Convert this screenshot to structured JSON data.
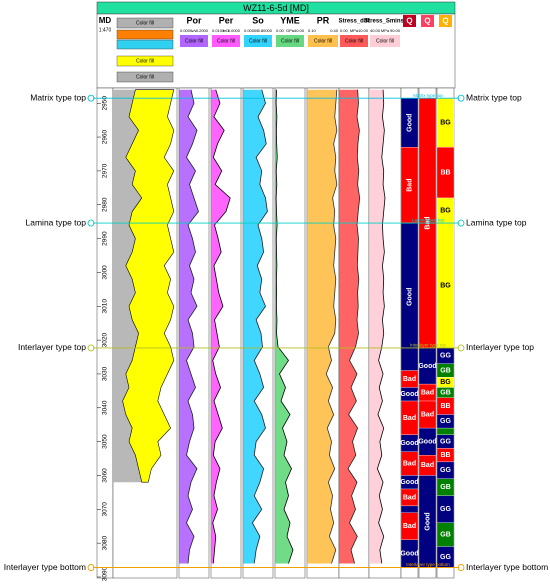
{
  "title": "WZ11-6-5d [MD]",
  "md": {
    "header": "MD",
    "scale": "1:470",
    "ylim": [
      2945.5,
      3090.3
    ],
    "yticks": [
      2950,
      2960,
      2970,
      2980,
      2990,
      3000,
      3010,
      3020,
      3030,
      3040,
      3050,
      3060,
      3070,
      3080,
      3090
    ]
  },
  "lithology": {
    "legend": [
      {
        "label": "Color fill",
        "color": "#b0b0b0"
      },
      {
        "label": "Color fill",
        "color": "#ffff00"
      },
      {
        "label": "Color fill",
        "color": "#b0b0b0"
      }
    ],
    "left": [
      0.35,
      0.3,
      0.25,
      0.4,
      0.3,
      0.2,
      0.35,
      0.3,
      0.45,
      0.3,
      0.25,
      0.35,
      0.3,
      0.2,
      0.3,
      0.35,
      0.25,
      0.3,
      0.4,
      0.35,
      0.3,
      0.2,
      0.25,
      0.15,
      0.2,
      0.3,
      0.25,
      0.35,
      0.4,
      0.45,
      null,
      null,
      null,
      null,
      null,
      null
    ],
    "right": [
      0.95,
      0.9,
      0.85,
      0.95,
      0.9,
      0.8,
      0.95,
      0.85,
      0.9,
      0.95,
      0.85,
      0.9,
      0.95,
      0.8,
      0.9,
      0.85,
      0.95,
      0.9,
      0.8,
      0.9,
      0.95,
      0.85,
      0.75,
      0.7,
      0.8,
      0.9,
      0.7,
      0.75,
      0.6,
      0.55,
      null,
      null,
      null,
      null,
      null,
      null
    ],
    "fill": "#ffff00",
    "rock": "#b8b8b8"
  },
  "depth": [
    2946,
    2950,
    2954,
    2958,
    2962,
    2966,
    2970,
    2974,
    2978,
    2982,
    2986,
    2990,
    2994,
    2998,
    3002,
    3006,
    3010,
    3014,
    3018,
    3022,
    3026,
    3030,
    3034,
    3038,
    3042,
    3046,
    3050,
    3054,
    3058,
    3062,
    3066,
    3070,
    3074,
    3078,
    3082,
    3086
  ],
  "tracks": [
    {
      "name": "Por",
      "scale": [
        {
          "value": 0,
          "label": "0.0000"
        },
        {
          "value": 0.2,
          "label": "0.2000"
        }
      ],
      "unit": "v/v",
      "fill_label": "Color fill",
      "fill": "#a040ff",
      "line": "#202020",
      "values": [
        0.08,
        0.1,
        0.06,
        0.12,
        0.09,
        0.05,
        0.11,
        0.07,
        0.1,
        0.13,
        0.06,
        0.09,
        0.11,
        0.07,
        0.1,
        0.08,
        0.12,
        0.06,
        0.09,
        0.1,
        0.05,
        0.08,
        0.11,
        0.06,
        0.09,
        0.1,
        0.07,
        0.05,
        0.12,
        0.08,
        0.06,
        0.09,
        0.05,
        0.1,
        0.07,
        0.06
      ]
    },
    {
      "name": "Per",
      "scale": [
        {
          "value": 0.01,
          "label": "0.0100"
        },
        {
          "value": 5,
          "label": "5.0000"
        }
      ],
      "unit": "mD",
      "fill_label": "Color fill",
      "fill": "#ff30ff",
      "line": "#000000",
      "values": [
        0.8,
        1.5,
        0.5,
        2.2,
        1.1,
        0.4,
        1.8,
        0.7,
        3.2,
        2.5,
        0.6,
        1.2,
        1.7,
        0.5,
        0.9,
        1.3,
        2.0,
        0.6,
        1.0,
        1.4,
        0.3,
        0.8,
        1.6,
        0.5,
        1.2,
        1.9,
        0.7,
        0.4,
        1.5,
        0.9,
        0.5,
        1.1,
        0.3,
        0.8,
        0.6,
        0.4
      ]
    },
    {
      "name": "So",
      "scale": [
        {
          "value": 0,
          "label": "0.00000"
        },
        {
          "value": 0.8,
          "label": "0.80000"
        }
      ],
      "unit": "",
      "fill_label": "Color fill",
      "fill": "#00c8ff",
      "line": "#202020",
      "values": [
        0.5,
        0.6,
        0.4,
        0.55,
        0.62,
        0.35,
        0.5,
        0.45,
        0.6,
        0.65,
        0.4,
        0.5,
        0.55,
        0.38,
        0.5,
        0.45,
        0.6,
        0.35,
        0.48,
        0.52,
        0.3,
        0.45,
        0.55,
        0.3,
        0.5,
        0.6,
        0.35,
        0.3,
        0.55,
        0.45,
        0.3,
        0.5,
        0.25,
        0.45,
        0.35,
        0.3
      ]
    },
    {
      "name": "YME",
      "scale": [
        {
          "value": 0,
          "label": "0.00"
        },
        {
          "value": 40,
          "label": "40.00"
        }
      ],
      "unit": "GPa",
      "fill_label": "Color fill",
      "fill": "#40d060",
      "line": "#000000",
      "values": [
        2,
        1.5,
        2.5,
        1.8,
        2.2,
        3,
        1.6,
        2.4,
        1.5,
        2,
        2.8,
        1.7,
        2,
        2.5,
        1.9,
        2.2,
        1.8,
        2.6,
        2.1,
        4,
        18,
        6,
        14,
        8,
        20,
        10,
        16,
        12,
        22,
        14,
        18,
        12,
        20,
        16,
        24,
        18
      ]
    },
    {
      "name": "PR",
      "scale": [
        {
          "value": 0.1,
          "label": "0.10"
        },
        {
          "value": 0.4,
          "label": "0.40"
        }
      ],
      "unit": "",
      "fill_label": "Color fill",
      "fill": "#ffb020",
      "line": "#303030",
      "values": [
        0.38,
        0.37,
        0.36,
        0.38,
        0.35,
        0.37,
        0.36,
        0.38,
        0.34,
        0.36,
        0.35,
        0.37,
        0.36,
        0.35,
        0.37,
        0.36,
        0.35,
        0.37,
        0.36,
        0.3,
        0.33,
        0.28,
        0.34,
        0.3,
        0.35,
        0.29,
        0.33,
        0.31,
        0.36,
        0.3,
        0.34,
        0.32,
        0.35,
        0.31,
        0.37,
        0.33
      ]
    },
    {
      "name": "Stress_diff",
      "scale": [
        {
          "value": 0,
          "label": "0.00"
        },
        {
          "value": 10,
          "label": "10.00"
        }
      ],
      "unit": "MPa",
      "fill_label": "Color fill",
      "fill": "#ff3030",
      "line": "#202020",
      "values": [
        6.2,
        6.5,
        6.0,
        6.8,
        6.3,
        6.1,
        6.6,
        6.2,
        6.9,
        6.4,
        6.0,
        6.5,
        6.3,
        6.1,
        6.6,
        6.2,
        6.4,
        6.0,
        6.5,
        5.5,
        3.5,
        6.0,
        4.0,
        5.8,
        3.2,
        6.2,
        4.5,
        5.6,
        3.0,
        6.0,
        4.2,
        5.5,
        3.5,
        6.1,
        4.0,
        5.2
      ]
    },
    {
      "name": "Stress_Sminst",
      "scale": [
        {
          "value": 40,
          "label": "40.00"
        },
        {
          "value": 90,
          "label": "90.00"
        }
      ],
      "unit": "MPa",
      "fill_label": "Color fill",
      "fill": "#ffc0cc",
      "line": "#000000",
      "values": [
        62,
        63,
        61,
        64,
        62,
        60,
        63,
        62,
        65,
        63,
        61,
        62,
        64,
        61,
        63,
        62,
        64,
        61,
        63,
        60,
        55,
        62,
        56,
        61,
        54,
        63,
        57,
        60,
        53,
        62,
        56,
        61,
        55,
        63,
        57,
        60
      ]
    }
  ],
  "zone_headers": [
    "Q",
    "Q",
    "Q"
  ],
  "zone_colors": {
    "Good": "#000080",
    "Bad": "#ff0000",
    "BG": "#ffff00",
    "BB": "#ff0000",
    "GG": "#000080",
    "GB": "#008000"
  },
  "zones": [
    [
      {
        "top": 2948.5,
        "bottom": 2963,
        "label": "Good"
      },
      {
        "top": 2963,
        "bottom": 2985.4,
        "label": "Bad"
      },
      {
        "top": 2985.4,
        "bottom": 3029,
        "label": "Good"
      },
      {
        "top": 3029,
        "bottom": 3034,
        "label": "Bad"
      },
      {
        "top": 3034,
        "bottom": 3038,
        "label": "Good"
      },
      {
        "top": 3038,
        "bottom": 3048,
        "label": "Bad"
      },
      {
        "top": 3048,
        "bottom": 3053,
        "label": "Good"
      },
      {
        "top": 3053,
        "bottom": 3060,
        "label": "Bad"
      },
      {
        "top": 3060,
        "bottom": 3064,
        "label": "Good"
      },
      {
        "top": 3064,
        "bottom": 3069,
        "label": "Bad"
      },
      {
        "top": 3069,
        "bottom": 3071,
        "label": "Good"
      },
      {
        "top": 3071,
        "bottom": 3079,
        "label": "Bad"
      },
      {
        "top": 3079,
        "bottom": 3087.2,
        "label": "Good"
      }
    ],
    [
      {
        "top": 2948.5,
        "bottom": 3022.3,
        "label": "Bad"
      },
      {
        "top": 3022.3,
        "bottom": 3033,
        "label": "Good"
      },
      {
        "top": 3033,
        "bottom": 3038,
        "label": "Bad"
      },
      {
        "top": 3038,
        "bottom": 3046,
        "label": "Bad"
      },
      {
        "top": 3046,
        "bottom": 3054,
        "label": "Good"
      },
      {
        "top": 3054,
        "bottom": 3060,
        "label": "Bad"
      },
      {
        "top": 3060,
        "bottom": 3087.2,
        "label": "Good"
      }
    ],
    [
      {
        "top": 2948.5,
        "bottom": 2963,
        "label": "BG"
      },
      {
        "top": 2963,
        "bottom": 2978,
        "label": "BB"
      },
      {
        "top": 2978,
        "bottom": 2985.4,
        "label": "BG"
      },
      {
        "top": 2985.4,
        "bottom": 3022.3,
        "label": "BG"
      },
      {
        "top": 3022.3,
        "bottom": 3027,
        "label": "GG"
      },
      {
        "top": 3027,
        "bottom": 3031,
        "label": "GB"
      },
      {
        "top": 3031,
        "bottom": 3034,
        "label": "BG"
      },
      {
        "top": 3034,
        "bottom": 3037,
        "label": "GB"
      },
      {
        "top": 3037,
        "bottom": 3042,
        "label": "BB"
      },
      {
        "top": 3042,
        "bottom": 3046,
        "label": "GG"
      },
      {
        "top": 3046,
        "bottom": 3048,
        "label": "GB"
      },
      {
        "top": 3048,
        "bottom": 3052,
        "label": "GG"
      },
      {
        "top": 3052,
        "bottom": 3056,
        "label": "BB"
      },
      {
        "top": 3056,
        "bottom": 3061,
        "label": "GG"
      },
      {
        "top": 3061,
        "bottom": 3066,
        "label": "GB"
      },
      {
        "top": 3066,
        "bottom": 3074,
        "label": "GG"
      },
      {
        "top": 3074,
        "bottom": 3081,
        "label": "GB"
      },
      {
        "top": 3081,
        "bottom": 3087.2,
        "label": "GG"
      }
    ]
  ],
  "markers": [
    {
      "label": "Matrix type top",
      "depth": 2948.5,
      "color": "#00c0e0"
    },
    {
      "label": "Lamina type top",
      "depth": 2985.4,
      "color": "#00d0c0"
    },
    {
      "label": "Interlayer type top",
      "depth": 3022.3,
      "color": "#b0c020"
    },
    {
      "label": "Interlayer type bottom",
      "depth": 3087.2,
      "color": "#f0a000"
    }
  ]
}
